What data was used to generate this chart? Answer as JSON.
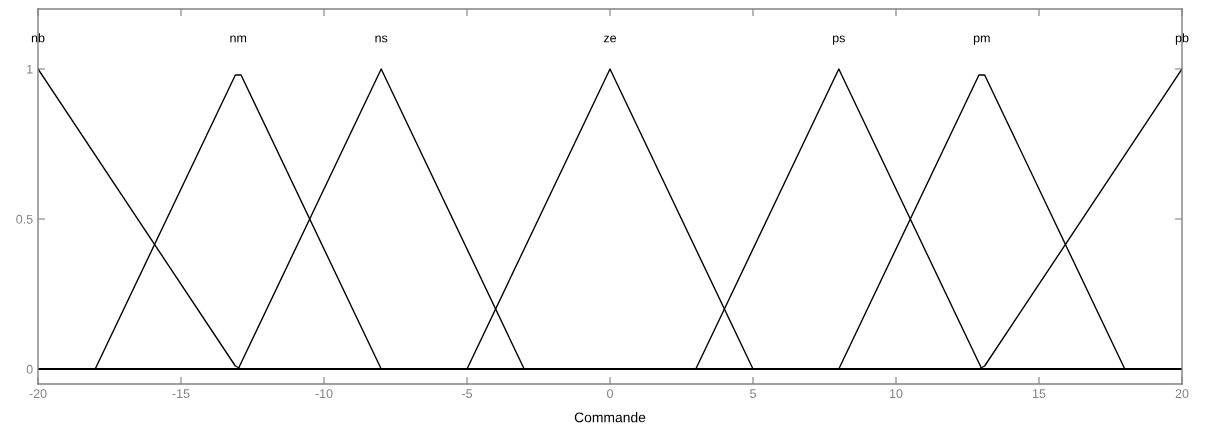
{
  "chart_data": {
    "type": "line",
    "xlabel": "Commande",
    "xlim": [
      -20,
      20
    ],
    "ylim": [
      -0.05,
      1.2
    ],
    "xticks": [
      -20,
      -15,
      -10,
      -5,
      0,
      5,
      10,
      15,
      20
    ],
    "yticks": [
      0,
      0.5,
      1
    ],
    "grid": false,
    "legend": false,
    "series": [
      {
        "name": "nb",
        "color": "#000000",
        "x": [
          -20,
          -13.1,
          -12.9,
          20
        ],
        "values": [
          1,
          0.01,
          0,
          0
        ]
      },
      {
        "name": "nm",
        "color": "#000000",
        "x": [
          -20,
          -18,
          -13.1,
          -12.9,
          -8,
          20
        ],
        "values": [
          0,
          0,
          0.98,
          0.98,
          0,
          0
        ]
      },
      {
        "name": "ns",
        "color": "#000000",
        "x": [
          -20,
          -13,
          -8,
          -3,
          20
        ],
        "values": [
          0,
          0,
          1,
          0,
          0
        ]
      },
      {
        "name": "ze",
        "color": "#000000",
        "x": [
          -20,
          -5,
          0,
          5,
          20
        ],
        "values": [
          0,
          0,
          1,
          0,
          0
        ]
      },
      {
        "name": "ps",
        "color": "#000000",
        "x": [
          -20,
          3,
          8,
          13,
          20
        ],
        "values": [
          0,
          0,
          1,
          0,
          0
        ]
      },
      {
        "name": "pm",
        "color": "#000000",
        "x": [
          -20,
          8,
          12.9,
          13.1,
          18,
          20
        ],
        "values": [
          0,
          0,
          0.98,
          0.98,
          0,
          0
        ]
      },
      {
        "name": "pb",
        "color": "#000000",
        "x": [
          -20,
          12.9,
          13.1,
          20
        ],
        "values": [
          0,
          0,
          0.01,
          1
        ]
      }
    ]
  }
}
